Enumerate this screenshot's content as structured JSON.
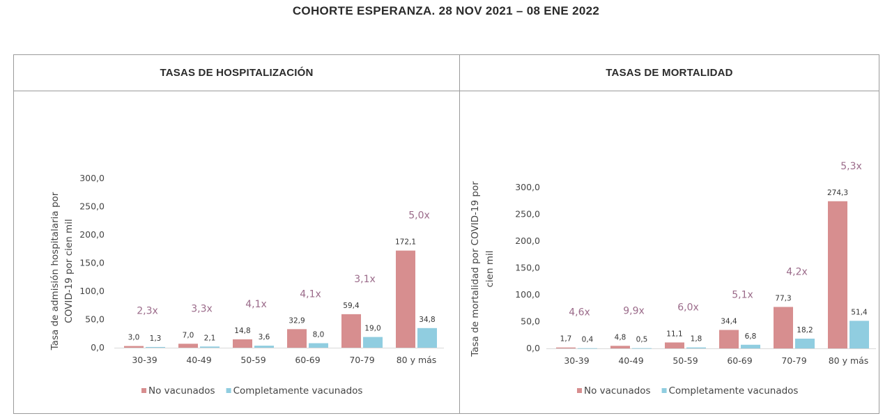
{
  "title": "COHORTE ESPERANZA. 28 NOV 2021 – 08 ENE 2022",
  "colors": {
    "no_vacunados": "#d78e8f",
    "completamente_vacunados": "#90cde0",
    "ratio_text": "#9b6b8a"
  },
  "chart_data": [
    {
      "type": "bar",
      "header": "TASAS DE HOSPITALIZACIÓN",
      "ylabel_lines": [
        "Tasa de admisión hospitalaria por",
        "COVID-19 por cien mil"
      ],
      "ylim": [
        0,
        300
      ],
      "yticks": [
        "0,0",
        "50,0",
        "100,0",
        "150,0",
        "200,0",
        "250,0",
        "300,0"
      ],
      "categories": [
        "30-39",
        "40-49",
        "50-59",
        "60-69",
        "70-79",
        "80 y más"
      ],
      "series": [
        {
          "name": "No vacunados",
          "values": [
            3.0,
            7.0,
            14.8,
            32.9,
            59.4,
            172.1
          ],
          "labels": [
            "3,0",
            "7,0",
            "14,8",
            "32,9",
            "59,4",
            "172,1"
          ]
        },
        {
          "name": "Completamente vacunados",
          "values": [
            1.3,
            2.1,
            3.6,
            8.0,
            19.0,
            34.8
          ],
          "labels": [
            "1,3",
            "2,1",
            "3,6",
            "8,0",
            "19,0",
            "34,8"
          ]
        }
      ],
      "ratios": [
        "2,3x",
        "3,3x",
        "4,1x",
        "4,1x",
        "3,1x",
        "5,0x"
      ],
      "legend": [
        "No vacunados",
        "Completamente vacunados"
      ]
    },
    {
      "type": "bar",
      "header": "TASAS DE MORTALIDAD",
      "ylabel_lines": [
        "Tasa de mortalidad por COVID-19 por",
        "cien mil"
      ],
      "ylim": [
        0,
        300
      ],
      "yticks": [
        "0,0",
        "50,0",
        "100,0",
        "150,0",
        "200,0",
        "250,0",
        "300,0"
      ],
      "categories": [
        "30-39",
        "40-49",
        "50-59",
        "60-69",
        "70-79",
        "80 y más"
      ],
      "series": [
        {
          "name": "No vacunados",
          "values": [
            1.7,
            4.8,
            11.1,
            34.4,
            77.3,
            274.3
          ],
          "labels": [
            "1,7",
            "4,8",
            "11,1",
            "34,4",
            "77,3",
            "274,3"
          ]
        },
        {
          "name": "Completamente vacunados",
          "values": [
            0.4,
            0.5,
            1.8,
            6.8,
            18.2,
            51.4
          ],
          "labels": [
            "0,4",
            "0,5",
            "1,8",
            "6,8",
            "18,2",
            "51,4"
          ]
        }
      ],
      "ratios": [
        "4,6x",
        "9,9x",
        "6,0x",
        "5,1x",
        "4,2x",
        "5,3x"
      ],
      "legend": [
        "No vacunados",
        "Completamente vacunados"
      ]
    }
  ]
}
